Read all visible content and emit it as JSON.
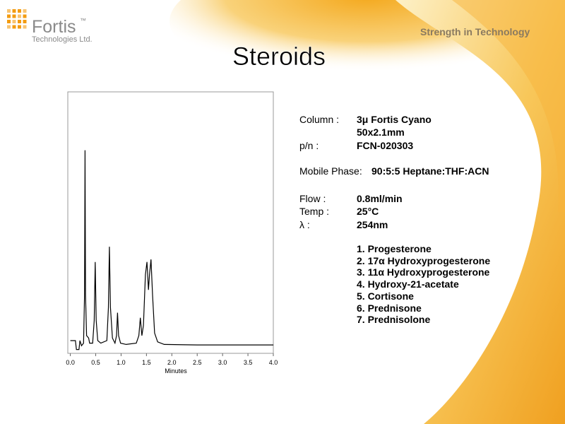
{
  "logo": {
    "name": "Fortis",
    "mark": "™",
    "subtitle": "Technologies Ltd."
  },
  "tagline": "Strength in Technology",
  "title": "Steroids",
  "details": [
    {
      "label": "Column :",
      "value": "3μ Fortis Cyano"
    },
    {
      "value": "50x2.1mm"
    },
    {
      "label": "p/n :",
      "value": "FCN-020303"
    },
    {
      "label": "Mobile Phase:",
      "value": "90:5:5 Heptane:THF:ACN"
    },
    {
      "label": "Flow :",
      "value": "0.8ml/min"
    },
    {
      "label": "Temp :",
      "value": "25°C"
    },
    {
      "label": "λ :",
      "value": "254nm"
    }
  ],
  "compounds": [
    "1. Progesterone",
    "2. 17α Hydroxyprogesterone",
    "3. 11α Hydroxyprogesterone",
    "4. Hydroxy-21-acetate",
    "5. Cortisone",
    "6. Prednisone",
    "7. Prednisolone"
  ],
  "chart_data": {
    "type": "line",
    "xlabel": "Minutes",
    "color": "#000000",
    "x": [
      0.0,
      0.1,
      0.12,
      0.17,
      0.19,
      0.22,
      0.26,
      0.28,
      0.29,
      0.3,
      0.32,
      0.36,
      0.38,
      0.44,
      0.47,
      0.49,
      0.51,
      0.54,
      0.6,
      0.72,
      0.75,
      0.77,
      0.79,
      0.83,
      0.88,
      0.91,
      0.93,
      0.95,
      0.99,
      1.1,
      1.3,
      1.35,
      1.38,
      1.41,
      1.44,
      1.48,
      1.51,
      1.54,
      1.56,
      1.59,
      1.62,
      1.66,
      1.72,
      1.85,
      2.5,
      4.0
    ],
    "values": [
      2,
      2,
      -1.5,
      -1.5,
      2,
      0,
      1,
      20,
      77,
      20,
      4,
      3,
      1,
      1,
      10,
      33,
      10,
      2,
      1,
      2,
      15,
      39,
      15,
      3,
      1,
      4,
      13,
      4,
      1,
      0.5,
      1,
      4,
      11,
      4,
      8,
      28,
      33,
      22,
      28,
      34,
      20,
      5,
      1.5,
      0.5,
      0.3,
      0.3
    ],
    "xlim": [
      -0.05,
      4.0
    ],
    "ylim": [
      -3,
      100
    ],
    "xticks": [
      {
        "value": 0,
        "label": "0.0"
      },
      0.5,
      {
        "value": 1,
        "label": "1.0"
      },
      1.5,
      {
        "value": 2,
        "label": "2.0"
      },
      2.5,
      {
        "value": 3,
        "label": "3.0"
      },
      3.5,
      {
        "value": 4,
        "label": "4.0"
      }
    ]
  }
}
